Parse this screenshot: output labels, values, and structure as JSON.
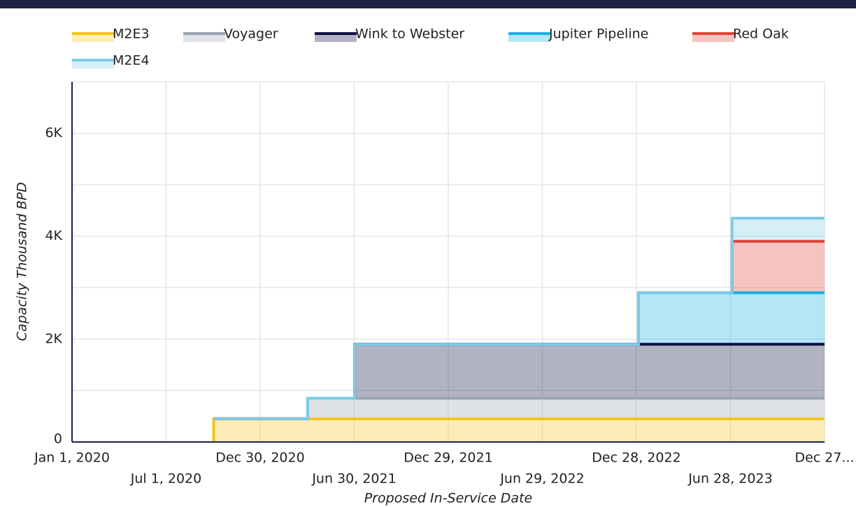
{
  "chart_data": {
    "type": "stacked_step_area",
    "y_label": "Capacity Thousand BPD",
    "x_label": "Proposed In-Service Date",
    "x": [
      "2020-10-01",
      "2021-04-01",
      "2021-07-01",
      "2023-01-01",
      "2023-07-01",
      "2023-12-27"
    ],
    "series": [
      {
        "name": "M2E3",
        "color": "#f5c518",
        "values": [
          450,
          450,
          450,
          450,
          450,
          450
        ]
      },
      {
        "name": "Voyager",
        "color": "#9aa5b1",
        "values": [
          0,
          400,
          400,
          400,
          400,
          400
        ]
      },
      {
        "name": "Wink to Webster",
        "color": "#0d1140",
        "values": [
          0,
          0,
          1050,
          1050,
          1050,
          1050
        ]
      },
      {
        "name": "Jupiter Pipeline",
        "color": "#1ab0e0",
        "values": [
          0,
          0,
          0,
          1000,
          1000,
          1000
        ]
      },
      {
        "name": "Red Oak",
        "color": "#e0463c",
        "values": [
          0,
          0,
          0,
          0,
          1000,
          1000
        ]
      },
      {
        "name": "M2E4",
        "color": "#7ccbe8",
        "values": [
          0,
          0,
          0,
          0,
          450,
          450
        ]
      }
    ],
    "xlim": [
      "2020-01-01",
      "2023-12-27"
    ],
    "xticks": [
      {
        "value": "2020-01-01",
        "label": "Jan 1, 2020"
      },
      {
        "value": "2020-07-01",
        "label": "Jul 1, 2020"
      },
      {
        "value": "2020-12-30",
        "label": "Dec 30, 2020"
      },
      {
        "value": "2021-06-30",
        "label": "Jun 30, 2021"
      },
      {
        "value": "2021-12-29",
        "label": "Dec 29, 2021"
      },
      {
        "value": "2022-06-29",
        "label": "Jun 29, 2022"
      },
      {
        "value": "2022-12-28",
        "label": "Dec 28, 2022"
      },
      {
        "value": "2023-06-28",
        "label": "Jun 28, 2023"
      },
      {
        "value": "2023-12-27",
        "label": "Dec 27..."
      }
    ],
    "ylim": [
      0,
      7000
    ],
    "yticks": [
      0,
      {
        "value": 2000,
        "label": "2K"
      },
      {
        "value": 4000,
        "label": "4K"
      },
      {
        "value": 6000,
        "label": "6K"
      }
    ],
    "grid_yticks": [
      1000,
      2000,
      3000,
      4000,
      5000,
      6000,
      7000
    ],
    "grid": true
  }
}
